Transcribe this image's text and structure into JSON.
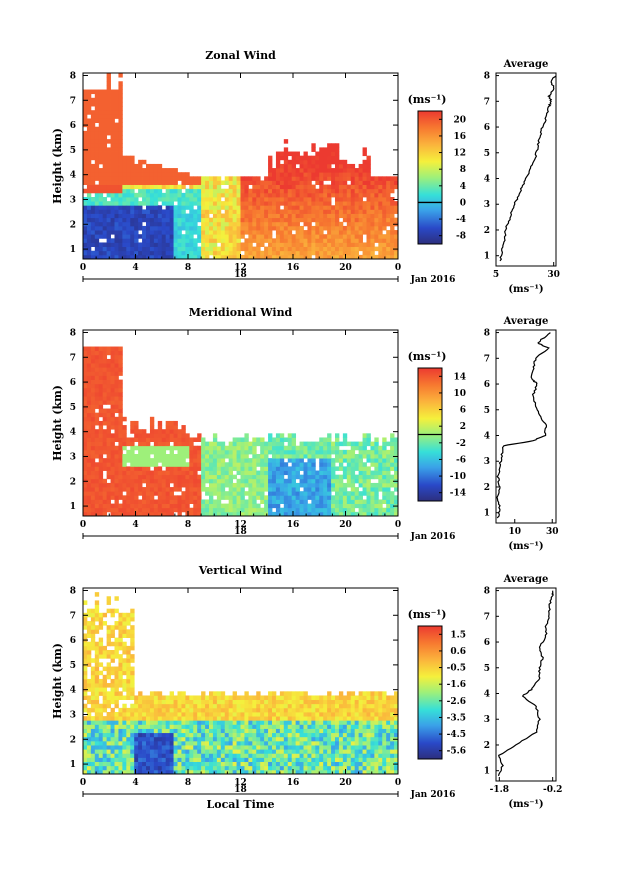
{
  "chart_data": [
    {
      "type": "heatmap",
      "title": "Zonal Wind",
      "ylabel": "Height (km)",
      "unit": "(ms⁻¹)",
      "x_ticks": [
        "0",
        "4",
        "8",
        "12",
        "16",
        "20",
        "0"
      ],
      "y_ticks": [
        "1",
        "2",
        "3",
        "4",
        "5",
        "6",
        "7",
        "8"
      ],
      "date_label": "18",
      "month_label": "Jan 2016",
      "colorbar_ticks": [
        "20",
        "16",
        "12",
        "8",
        "4",
        "0",
        "-4",
        "-8"
      ],
      "colorbar_range": [
        -10,
        22
      ],
      "zero_contour": 0,
      "profile": {
        "title": "Average",
        "xlabel": "(ms⁻¹)",
        "x_ticks": [
          "5",
          "30"
        ],
        "xlim": [
          5,
          31
        ],
        "points": [
          [
            7,
            0.8
          ],
          [
            7.5,
            1.2
          ],
          [
            9,
            1.6
          ],
          [
            9,
            2.0
          ],
          [
            11,
            2.4
          ],
          [
            12,
            2.8
          ],
          [
            14,
            3.2
          ],
          [
            16,
            3.6
          ],
          [
            18,
            4.0
          ],
          [
            20,
            4.4
          ],
          [
            22,
            4.8
          ],
          [
            23,
            5.2
          ],
          [
            24,
            5.6
          ],
          [
            25,
            6.0
          ],
          [
            27,
            6.4
          ],
          [
            28,
            6.8
          ],
          [
            29,
            7.0
          ],
          [
            28,
            7.2
          ],
          [
            30,
            7.5
          ],
          [
            29,
            7.8
          ],
          [
            31,
            8.0
          ]
        ]
      }
    },
    {
      "type": "heatmap",
      "title": "Meridional Wind",
      "ylabel": "Height (km)",
      "unit": "(ms⁻¹)",
      "x_ticks": [
        "0",
        "4",
        "8",
        "12",
        "16",
        "20",
        "0"
      ],
      "y_ticks": [
        "1",
        "2",
        "3",
        "4",
        "5",
        "6",
        "7",
        "8"
      ],
      "date_label": "18",
      "month_label": "Jan 2016",
      "colorbar_ticks": [
        "14",
        "10",
        "6",
        "2",
        "-2",
        "-6",
        "-10",
        "-14"
      ],
      "colorbar_range": [
        -16,
        16
      ],
      "zero_contour": 0,
      "profile": {
        "title": "Average",
        "xlabel": "(ms⁻¹)",
        "x_ticks": [
          "10",
          "30"
        ],
        "xlim": [
          0,
          32
        ],
        "points": [
          [
            1,
            0.8
          ],
          [
            2,
            1.2
          ],
          [
            1,
            1.6
          ],
          [
            2,
            2.0
          ],
          [
            1,
            2.4
          ],
          [
            2,
            2.8
          ],
          [
            3,
            3.2
          ],
          [
            4,
            3.6
          ],
          [
            20,
            3.8
          ],
          [
            26,
            4.0
          ],
          [
            27,
            4.4
          ],
          [
            23,
            4.8
          ],
          [
            21,
            5.2
          ],
          [
            20,
            5.6
          ],
          [
            22,
            6.0
          ],
          [
            19,
            6.2
          ],
          [
            20,
            6.6
          ],
          [
            21,
            7.0
          ],
          [
            28,
            7.4
          ],
          [
            22,
            7.6
          ],
          [
            29,
            8.0
          ]
        ]
      }
    },
    {
      "type": "heatmap",
      "title": "Vertical Wind",
      "ylabel": "Height (km)",
      "xlabel": "Local Time",
      "unit": "(ms⁻¹)",
      "x_ticks": [
        "0",
        "4",
        "8",
        "12",
        "16",
        "20",
        "0"
      ],
      "y_ticks": [
        "1",
        "2",
        "3",
        "4",
        "5",
        "6",
        "7",
        "8"
      ],
      "date_label": "18",
      "month_label": "Jan 2016",
      "colorbar_ticks": [
        "1.5",
        "0.6",
        "-0.5",
        "-1.6",
        "-2.6",
        "-3.5",
        "-4.5",
        "-5.6"
      ],
      "colorbar_range": [
        -6,
        2
      ],
      "profile": {
        "title": "Average",
        "xlabel": "(ms⁻¹)",
        "x_ticks": [
          "-1.8",
          "-0.2"
        ],
        "xlim": [
          -1.9,
          -0.1
        ],
        "points": [
          [
            -1.8,
            0.8
          ],
          [
            -1.7,
            1.2
          ],
          [
            -1.8,
            1.6
          ],
          [
            -1.3,
            2.0
          ],
          [
            -0.7,
            2.5
          ],
          [
            -0.6,
            3.0
          ],
          [
            -0.7,
            3.5
          ],
          [
            -1.1,
            3.9
          ],
          [
            -0.8,
            4.2
          ],
          [
            -0.6,
            4.6
          ],
          [
            -0.6,
            5.0
          ],
          [
            -0.5,
            5.4
          ],
          [
            -0.6,
            5.8
          ],
          [
            -0.4,
            6.2
          ],
          [
            -0.4,
            6.6
          ],
          [
            -0.3,
            7.0
          ],
          [
            -0.3,
            7.4
          ],
          [
            -0.2,
            7.8
          ],
          [
            -0.2,
            8.0
          ]
        ]
      }
    }
  ]
}
